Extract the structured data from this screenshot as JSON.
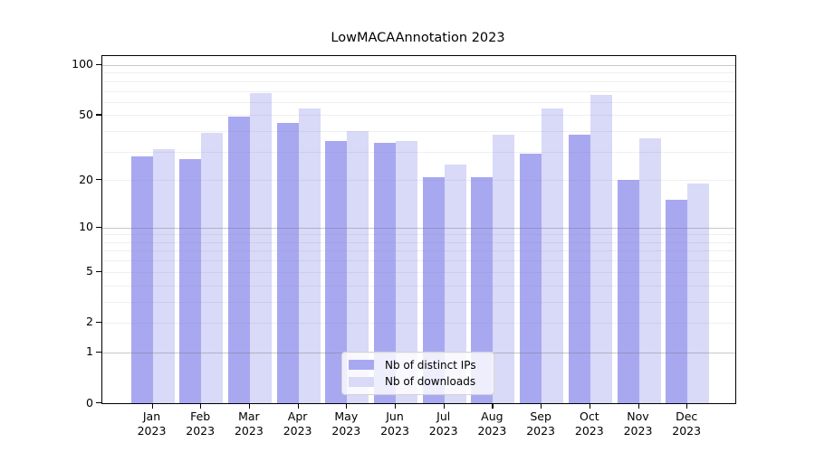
{
  "title": "LowMACAAnnotation 2023",
  "chart_data": {
    "type": "bar",
    "title": "LowMACAAnnotation 2023",
    "categories": [
      "Jan 2023",
      "Feb 2023",
      "Mar 2023",
      "Apr 2023",
      "May 2023",
      "Jun 2023",
      "Jul 2023",
      "Aug 2023",
      "Sep 2023",
      "Oct 2023",
      "Nov 2023",
      "Dec 2023"
    ],
    "months": [
      "Jan",
      "Feb",
      "Mar",
      "Apr",
      "May",
      "Jun",
      "Jul",
      "Aug",
      "Sep",
      "Oct",
      "Nov",
      "Dec"
    ],
    "year_label": "2023",
    "series": [
      {
        "name": "Nb of distinct IPs",
        "color": "#a8a8f1",
        "values": [
          28,
          27,
          49,
          45,
          35,
          34,
          21,
          21,
          29,
          38,
          20,
          15
        ]
      },
      {
        "name": "Nb of downloads",
        "color": "#d9d9f8",
        "values": [
          31,
          39,
          68,
          55,
          40,
          35,
          25,
          38,
          55,
          66,
          36,
          19
        ]
      }
    ],
    "xlabel": "",
    "ylabel": "",
    "yscale": "log10(1+x)",
    "ylim": [
      0,
      113
    ],
    "yticks": [
      100,
      50,
      20,
      10,
      5,
      2,
      1,
      0
    ],
    "grid_major": [
      1,
      10,
      100
    ],
    "grid_minor": [
      2,
      3,
      4,
      5,
      6,
      7,
      8,
      9,
      20,
      30,
      40,
      50,
      60,
      70,
      80,
      90
    ],
    "grid": "horizontal, over bars",
    "legend_position": "bottom-center"
  },
  "legend": {
    "items": [
      {
        "label": "Nb of distinct IPs",
        "color": "#a8a8f1"
      },
      {
        "label": "Nb of downloads",
        "color": "#d9d9f8"
      }
    ]
  },
  "colors": {
    "bar_distinct_ips": "#a8a8f1",
    "bar_downloads": "#d9d9f8",
    "axis": "#000000",
    "background": "#ffffff"
  }
}
